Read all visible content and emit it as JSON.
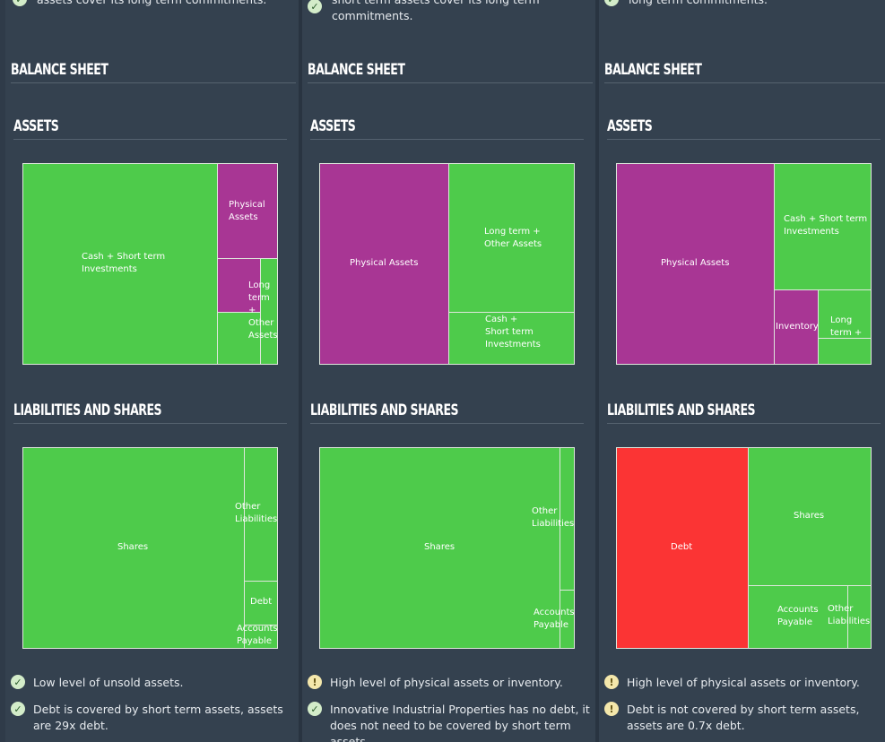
{
  "columns": [
    {
      "top_text": "assets cover its long term commitments.",
      "balance_title": "BALANCE SHEET",
      "assets_title": "ASSETS",
      "assets_cells": [
        "Cash + Short term Investments",
        "Physical Assets",
        "Long term + Other Assets"
      ],
      "liab_title": "LIABILITIES AND SHARES",
      "liab_cells": [
        "Shares",
        "Other Liabilities",
        "Debt",
        "Accounts Payable"
      ],
      "checks": [
        {
          "type": "check",
          "text": "Low level of unsold assets."
        },
        {
          "type": "check",
          "text": "Debt is covered by short term assets, assets are 29x debt."
        }
      ]
    },
    {
      "top_text": "short term assets cover its long term commitments.",
      "balance_title": "BALANCE SHEET",
      "assets_title": "ASSETS",
      "assets_cells": [
        "Physical Assets",
        "Long term + Other Assets",
        "Cash + Short term Investments"
      ],
      "liab_title": "LIABILITIES AND SHARES",
      "liab_cells": [
        "Shares",
        "Other Liabilities",
        "Accounts Payable"
      ],
      "checks": [
        {
          "type": "warn",
          "text": "High level of physical assets or inventory."
        },
        {
          "type": "check",
          "text": "Innovative Industrial Properties has no debt, it does not need to be covered by short term assets."
        }
      ]
    },
    {
      "top_text": "long term commitments.",
      "balance_title": "BALANCE SHEET",
      "assets_title": "ASSETS",
      "assets_cells": [
        "Physical Assets",
        "Cash + Short term Investments",
        "Inventory",
        "Long term + Other Assets"
      ],
      "liab_title": "LIABILITIES AND SHARES",
      "liab_cells": [
        "Debt",
        "Shares",
        "Accounts Payable",
        "Other Liabilities"
      ],
      "checks": [
        {
          "type": "warn",
          "text": "High level of physical assets or inventory."
        },
        {
          "type": "warn",
          "text": "Debt is not covered by short term assets, assets are 0.7x debt."
        }
      ]
    }
  ],
  "icons": {
    "check": "✓",
    "warn": "!"
  },
  "colors": {
    "asset_green": "#4ecb4b",
    "asset_purple": "#a83694",
    "debt_red": "#fb3434"
  }
}
